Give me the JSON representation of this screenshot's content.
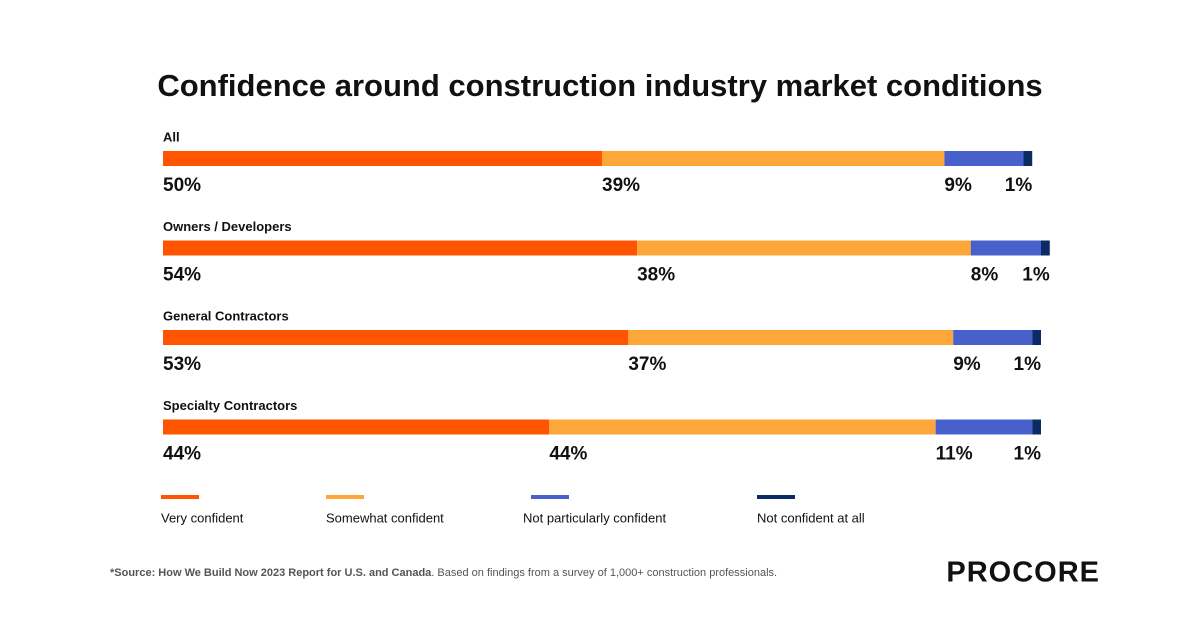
{
  "chart_data": {
    "type": "stacked-bar-horizontal",
    "title": "Confidence around construction industry market conditions",
    "categories": [
      "All",
      "Owners / Developers",
      "General Contractors",
      "Specialty Contractors"
    ],
    "series": [
      {
        "name": "Very confident",
        "color": "#ff5500",
        "values": [
          50,
          54,
          53,
          44
        ],
        "value_labels": [
          "50%",
          "54%",
          "53%",
          "44%"
        ]
      },
      {
        "name": "Somewhat confident",
        "color": "#fda73a",
        "values": [
          39,
          38,
          37,
          44
        ],
        "value_labels": [
          "39%",
          "38%",
          "37%",
          "44%"
        ]
      },
      {
        "name": "Not particularly confident",
        "color": "#4860cc",
        "values": [
          9,
          8,
          9,
          11
        ],
        "value_labels": [
          "9%",
          "8%",
          "9%",
          "11%"
        ]
      },
      {
        "name": "Not confident at all",
        "color": "#0c2b66",
        "values": [
          1,
          1,
          1,
          1
        ],
        "value_labels": [
          "1%",
          "1%",
          "1%",
          "1%"
        ]
      }
    ],
    "xlim": [
      0,
      100
    ],
    "source_bold": "*Source: How We Build Now 2023 Report for U.S. and Canada",
    "source_rest": ". Based on findings from a survey of 1,000+ construction professionals.",
    "logo": "PROCORE"
  }
}
